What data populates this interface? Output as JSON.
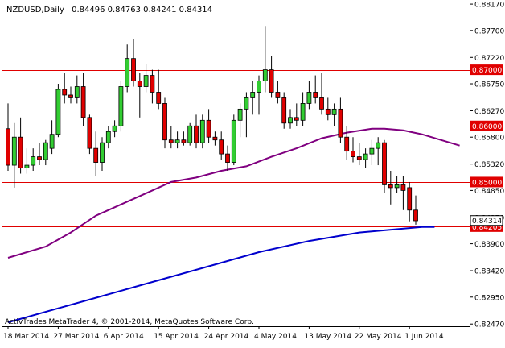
{
  "header": {
    "symbol": "NZDUSD,Daily",
    "ohlc": "0.84496 0.84763 0.84241 0.84314"
  },
  "watermark": "ActivTrades MetaTrader 4, © 2001-2014, MetaQuotes Software Corp.",
  "colors": {
    "bull": "#32cd32",
    "bear": "#e00000",
    "wick": "#000000",
    "ma_fast": "#800080",
    "ma_slow": "#0000cd",
    "level": "#e00000",
    "price_label_bg": "#e00000"
  },
  "chart_data": {
    "type": "candlestick",
    "ylim": [
      0.8243,
      0.882
    ],
    "y_ticks": [
      "0.88170",
      "0.87700",
      "0.87220",
      "0.86750",
      "0.86270",
      "0.85800",
      "0.85320",
      "0.84850",
      "0.84370",
      "0.83900",
      "0.83420",
      "0.82950",
      "0.82470"
    ],
    "x_labels": [
      "18 Mar 2014",
      "27 Mar 2014",
      "6 Apr 2014",
      "15 Apr 2014",
      "24 Apr 2014",
      "4 May 2014",
      "13 May 2014",
      "22 May 2014",
      "1 Jun 2014"
    ],
    "x_label_index": [
      0,
      8,
      16,
      24,
      32,
      40,
      48,
      56,
      64
    ],
    "levels": [
      {
        "value": 0.87,
        "label": "0.87000"
      },
      {
        "value": 0.86,
        "label": "0.86000"
      },
      {
        "value": 0.85,
        "label": "0.85000"
      },
      {
        "value": 0.84205,
        "label": "0.84205"
      }
    ],
    "current_price": {
      "value": 0.84314,
      "label": "0.84314"
    },
    "candles": [
      [
        0.8595,
        0.864,
        0.852,
        0.853
      ],
      [
        0.853,
        0.8605,
        0.849,
        0.858
      ],
      [
        0.858,
        0.8615,
        0.8515,
        0.8525
      ],
      [
        0.8525,
        0.856,
        0.8515,
        0.853
      ],
      [
        0.853,
        0.856,
        0.852,
        0.8545
      ],
      [
        0.8545,
        0.857,
        0.853,
        0.854
      ],
      [
        0.854,
        0.8575,
        0.853,
        0.857
      ],
      [
        0.856,
        0.861,
        0.855,
        0.8585
      ],
      [
        0.8585,
        0.8675,
        0.858,
        0.8665
      ],
      [
        0.8665,
        0.8695,
        0.864,
        0.8655
      ],
      [
        0.8655,
        0.867,
        0.864,
        0.865
      ],
      [
        0.865,
        0.869,
        0.864,
        0.867
      ],
      [
        0.867,
        0.8695,
        0.86,
        0.8615
      ],
      [
        0.8615,
        0.862,
        0.855,
        0.856
      ],
      [
        0.856,
        0.859,
        0.851,
        0.8535
      ],
      [
        0.8535,
        0.858,
        0.852,
        0.857
      ],
      [
        0.857,
        0.86,
        0.856,
        0.859
      ],
      [
        0.859,
        0.861,
        0.858,
        0.86
      ],
      [
        0.86,
        0.868,
        0.859,
        0.867
      ],
      [
        0.867,
        0.8745,
        0.866,
        0.872
      ],
      [
        0.872,
        0.8755,
        0.867,
        0.868
      ],
      [
        0.868,
        0.8695,
        0.8615,
        0.867
      ],
      [
        0.867,
        0.871,
        0.866,
        0.869
      ],
      [
        0.869,
        0.87,
        0.864,
        0.866
      ],
      [
        0.866,
        0.87,
        0.863,
        0.864
      ],
      [
        0.864,
        0.865,
        0.856,
        0.8575
      ],
      [
        0.8575,
        0.86,
        0.856,
        0.857
      ],
      [
        0.857,
        0.859,
        0.856,
        0.8575
      ],
      [
        0.8575,
        0.859,
        0.8565,
        0.857
      ],
      [
        0.857,
        0.8605,
        0.8565,
        0.86
      ],
      [
        0.86,
        0.862,
        0.856,
        0.857
      ],
      [
        0.857,
        0.862,
        0.856,
        0.861
      ],
      [
        0.861,
        0.863,
        0.857,
        0.858
      ],
      [
        0.858,
        0.859,
        0.8565,
        0.8575
      ],
      [
        0.8575,
        0.859,
        0.854,
        0.855
      ],
      [
        0.855,
        0.8565,
        0.852,
        0.8535
      ],
      [
        0.8535,
        0.862,
        0.853,
        0.861
      ],
      [
        0.861,
        0.864,
        0.858,
        0.863
      ],
      [
        0.863,
        0.866,
        0.858,
        0.865
      ],
      [
        0.865,
        0.868,
        0.862,
        0.866
      ],
      [
        0.866,
        0.869,
        0.862,
        0.868
      ],
      [
        0.868,
        0.8778,
        0.866,
        0.87
      ],
      [
        0.87,
        0.8725,
        0.865,
        0.866
      ],
      [
        0.866,
        0.868,
        0.864,
        0.865
      ],
      [
        0.865,
        0.866,
        0.8595,
        0.8605
      ],
      [
        0.8605,
        0.863,
        0.8595,
        0.8615
      ],
      [
        0.8615,
        0.864,
        0.86,
        0.861
      ],
      [
        0.861,
        0.866,
        0.86,
        0.864
      ],
      [
        0.864,
        0.868,
        0.863,
        0.866
      ],
      [
        0.866,
        0.869,
        0.864,
        0.865
      ],
      [
        0.865,
        0.8695,
        0.862,
        0.863
      ],
      [
        0.863,
        0.865,
        0.861,
        0.862
      ],
      [
        0.862,
        0.864,
        0.86,
        0.863
      ],
      [
        0.863,
        0.865,
        0.857,
        0.858
      ],
      [
        0.858,
        0.86,
        0.854,
        0.8555
      ],
      [
        0.8555,
        0.858,
        0.8535,
        0.8545
      ],
      [
        0.8545,
        0.857,
        0.853,
        0.854
      ],
      [
        0.854,
        0.856,
        0.8525,
        0.855
      ],
      [
        0.855,
        0.8575,
        0.853,
        0.856
      ],
      [
        0.856,
        0.858,
        0.853,
        0.857
      ],
      [
        0.857,
        0.8575,
        0.848,
        0.8495
      ],
      [
        0.8495,
        0.852,
        0.846,
        0.849
      ],
      [
        0.849,
        0.851,
        0.848,
        0.8495
      ],
      [
        0.8495,
        0.851,
        0.845,
        0.8485
      ],
      [
        0.849,
        0.85,
        0.843,
        0.845
      ],
      [
        0.845,
        0.8476,
        0.8424,
        0.8431
      ]
    ],
    "ma_fast": [
      [
        0,
        0.8365
      ],
      [
        6,
        0.8385
      ],
      [
        10,
        0.841
      ],
      [
        14,
        0.844
      ],
      [
        18,
        0.846
      ],
      [
        22,
        0.848
      ],
      [
        26,
        0.85
      ],
      [
        30,
        0.8508
      ],
      [
        34,
        0.852
      ],
      [
        38,
        0.8528
      ],
      [
        42,
        0.8545
      ],
      [
        46,
        0.856
      ],
      [
        50,
        0.8578
      ],
      [
        54,
        0.8588
      ],
      [
        58,
        0.8595
      ],
      [
        60,
        0.8595
      ],
      [
        63,
        0.8592
      ],
      [
        66,
        0.8585
      ],
      [
        69,
        0.8575
      ],
      [
        72,
        0.8565
      ]
    ],
    "ma_slow": [
      [
        0,
        0.825
      ],
      [
        8,
        0.8275
      ],
      [
        16,
        0.83
      ],
      [
        24,
        0.8325
      ],
      [
        32,
        0.835
      ],
      [
        40,
        0.8375
      ],
      [
        48,
        0.8395
      ],
      [
        56,
        0.841
      ],
      [
        64,
        0.8418
      ],
      [
        66,
        0.842
      ],
      [
        68,
        0.842
      ]
    ]
  }
}
